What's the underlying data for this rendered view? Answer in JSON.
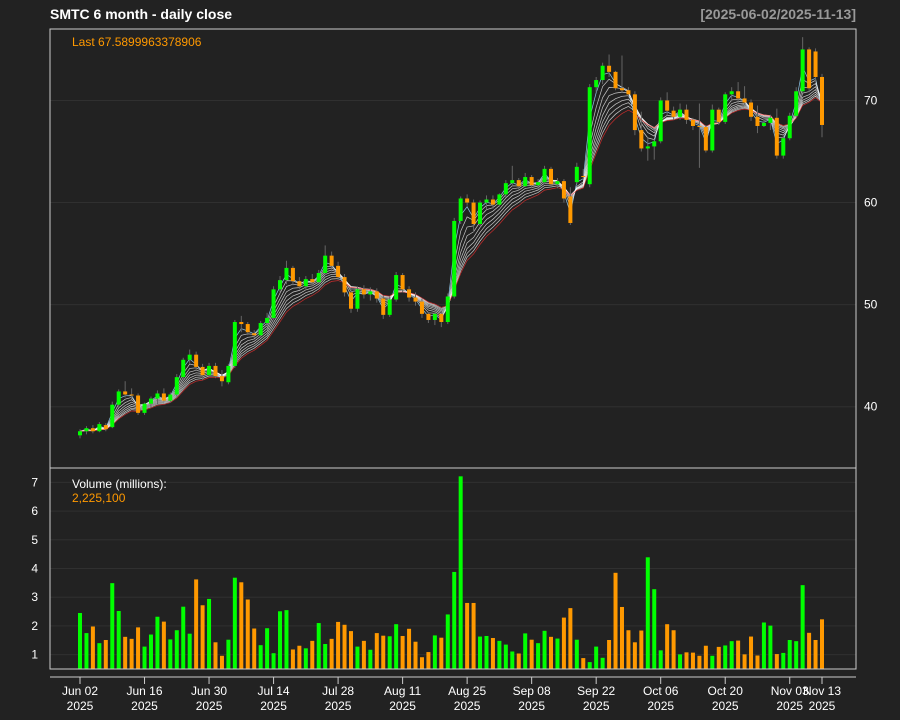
{
  "header": {
    "title": "SMTC  6 month - daily close",
    "range": "[2025-06-02/2025-11-13]"
  },
  "labels": {
    "last": "Last 67.5899963378906",
    "volume_title": "Volume (millions):",
    "volume_value": "2,225,100"
  },
  "colors": {
    "background": "#222222",
    "up": "#00ff00",
    "down": "#ff9900",
    "grid": "#303030",
    "axis": "#ffffff",
    "range_text": "#999999"
  },
  "chart_data": [
    {
      "type": "candlestick",
      "ticker": "SMTC",
      "ylim": [
        34,
        77
      ],
      "yticks": [
        40,
        50,
        60,
        70
      ],
      "xticks": [
        {
          "date": "2025-06-02",
          "label": "Jun 02",
          "year": "2025"
        },
        {
          "date": "2025-06-16",
          "label": "Jun 16",
          "year": "2025"
        },
        {
          "date": "2025-06-30",
          "label": "Jun 30",
          "year": "2025"
        },
        {
          "date": "2025-07-14",
          "label": "Jul 14",
          "year": "2025"
        },
        {
          "date": "2025-07-28",
          "label": "Jul 28",
          "year": "2025"
        },
        {
          "date": "2025-08-11",
          "label": "Aug 11",
          "year": "2025"
        },
        {
          "date": "2025-08-25",
          "label": "Aug 25",
          "year": "2025"
        },
        {
          "date": "2025-09-08",
          "label": "Sep 08",
          "year": "2025"
        },
        {
          "date": "2025-09-22",
          "label": "Sep 22",
          "year": "2025"
        },
        {
          "date": "2025-10-06",
          "label": "Oct 06",
          "year": "2025"
        },
        {
          "date": "2025-10-20",
          "label": "Oct 20",
          "year": "2025"
        },
        {
          "date": "2025-11-03",
          "label": "Nov 03",
          "year": "2025"
        },
        {
          "date": "2025-11-13",
          "label": "Nov 13",
          "year": "2025"
        }
      ],
      "ohlc_ohlc": [
        [
          37.2,
          37.8,
          36.9,
          37.6
        ],
        [
          37.6,
          38.1,
          37.3,
          37.9
        ],
        [
          37.9,
          38.2,
          37.4,
          37.6
        ],
        [
          37.6,
          38.5,
          37.5,
          38.3
        ],
        [
          38.2,
          38.4,
          37.6,
          37.8
        ],
        [
          38.0,
          40.5,
          37.9,
          40.2
        ],
        [
          40.2,
          41.7,
          40.0,
          41.5
        ],
        [
          41.5,
          42.5,
          40.9,
          41.2
        ],
        [
          41.2,
          41.8,
          40.7,
          41.1
        ],
        [
          41.1,
          41.3,
          39.2,
          39.4
        ],
        [
          39.4,
          40.4,
          39.2,
          40.3
        ],
        [
          40.3,
          41.0,
          39.9,
          40.8
        ],
        [
          40.8,
          41.6,
          40.3,
          41.3
        ],
        [
          41.3,
          41.8,
          40.5,
          40.6
        ],
        [
          40.6,
          41.4,
          40.4,
          41.2
        ],
        [
          41.2,
          43.2,
          41.0,
          42.9
        ],
        [
          42.9,
          44.8,
          42.7,
          44.6
        ],
        [
          44.6,
          45.6,
          44.2,
          45.1
        ],
        [
          45.1,
          45.4,
          43.5,
          43.9
        ],
        [
          43.9,
          44.2,
          42.6,
          43.1
        ],
        [
          43.1,
          44.3,
          42.9,
          44.0
        ],
        [
          44.0,
          44.3,
          42.8,
          43.0
        ],
        [
          43.0,
          43.6,
          42.0,
          42.5
        ],
        [
          42.4,
          44.2,
          42.2,
          44.0
        ],
        [
          44.0,
          48.5,
          43.8,
          48.3
        ],
        [
          48.3,
          48.9,
          47.3,
          48.1
        ],
        [
          48.1,
          48.3,
          47.0,
          47.3
        ],
        [
          47.2,
          47.5,
          46.7,
          47.0
        ],
        [
          47.0,
          48.4,
          46.8,
          48.2
        ],
        [
          48.2,
          49.2,
          47.8,
          48.7
        ],
        [
          48.7,
          51.8,
          48.5,
          51.5
        ],
        [
          51.5,
          52.8,
          51.2,
          52.4
        ],
        [
          52.4,
          54.3,
          52.0,
          53.6
        ],
        [
          53.6,
          53.8,
          51.9,
          52.3
        ],
        [
          52.3,
          52.7,
          51.5,
          51.8
        ],
        [
          51.8,
          52.8,
          51.4,
          52.5
        ],
        [
          52.5,
          53.0,
          51.8,
          52.2
        ],
        [
          52.2,
          53.4,
          52.0,
          53.1
        ],
        [
          53.1,
          55.8,
          52.9,
          54.8
        ],
        [
          54.8,
          55.2,
          53.6,
          53.8
        ],
        [
          53.8,
          54.2,
          52.4,
          52.7
        ],
        [
          52.7,
          53.0,
          50.8,
          51.2
        ],
        [
          51.2,
          51.6,
          49.2,
          49.6
        ],
        [
          49.6,
          51.8,
          49.3,
          51.5
        ],
        [
          51.5,
          51.9,
          50.6,
          51.0
        ],
        [
          51.0,
          51.7,
          50.4,
          51.3
        ],
        [
          51.3,
          51.6,
          50.2,
          50.6
        ],
        [
          50.6,
          50.9,
          48.6,
          49.0
        ],
        [
          49.0,
          50.8,
          48.8,
          50.5
        ],
        [
          50.5,
          53.2,
          50.3,
          52.9
        ],
        [
          52.9,
          53.1,
          51.2,
          51.5
        ],
        [
          51.5,
          51.8,
          50.3,
          50.7
        ],
        [
          50.7,
          51.2,
          49.9,
          50.3
        ],
        [
          50.3,
          50.6,
          48.7,
          49.1
        ],
        [
          49.1,
          49.3,
          48.2,
          48.5
        ],
        [
          48.5,
          49.5,
          48.0,
          49.1
        ],
        [
          49.1,
          49.4,
          47.8,
          48.3
        ],
        [
          48.3,
          51.1,
          48.1,
          50.8
        ],
        [
          50.8,
          58.5,
          50.6,
          58.2
        ],
        [
          58.2,
          60.6,
          57.9,
          60.4
        ],
        [
          60.4,
          60.8,
          59.7,
          60.0
        ],
        [
          60.0,
          60.3,
          57.1,
          57.9
        ],
        [
          57.9,
          60.2,
          57.7,
          60.0
        ],
        [
          60.0,
          60.7,
          59.3,
          60.3
        ],
        [
          60.3,
          60.7,
          59.4,
          59.8
        ],
        [
          59.8,
          60.9,
          59.6,
          60.8
        ],
        [
          60.8,
          62.2,
          60.5,
          61.9
        ],
        [
          61.9,
          63.6,
          61.6,
          62.2
        ],
        [
          62.2,
          62.4,
          61.2,
          61.6
        ],
        [
          61.6,
          62.9,
          61.5,
          62.5
        ],
        [
          62.5,
          62.7,
          61.4,
          61.7
        ],
        [
          61.7,
          62.3,
          61.3,
          62.0
        ],
        [
          62.0,
          63.6,
          61.8,
          63.3
        ],
        [
          63.3,
          63.5,
          61.5,
          61.8
        ],
        [
          61.8,
          62.4,
          61.4,
          62.1
        ],
        [
          62.1,
          62.3,
          60.0,
          60.4
        ],
        [
          60.6,
          61.5,
          57.8,
          58.0
        ],
        [
          62.0,
          63.9,
          61.8,
          63.5
        ],
        [
          62.6,
          63.3,
          62.3,
          62.5
        ],
        [
          61.8,
          71.6,
          61.5,
          71.3
        ],
        [
          71.3,
          72.3,
          70.8,
          72.0
        ],
        [
          72.0,
          73.7,
          71.6,
          73.4
        ],
        [
          73.4,
          74.5,
          72.3,
          72.8
        ],
        [
          72.8,
          72.9,
          71.0,
          71.2
        ],
        [
          71.2,
          74.4,
          70.8,
          71.0
        ],
        [
          71.0,
          71.3,
          70.3,
          70.6
        ],
        [
          70.6,
          70.9,
          66.6,
          67.1
        ],
        [
          67.1,
          68.9,
          65.0,
          65.3
        ],
        [
          65.3,
          66.4,
          64.1,
          65.5
        ],
        [
          65.5,
          66.2,
          64.2,
          66.0
        ],
        [
          66.0,
          70.3,
          65.8,
          70.0
        ],
        [
          70.0,
          70.8,
          68.5,
          69.0
        ],
        [
          69.0,
          69.4,
          68.1,
          68.4
        ],
        [
          68.4,
          69.7,
          68.1,
          69.1
        ],
        [
          69.1,
          69.6,
          67.7,
          68.1
        ],
        [
          68.1,
          68.3,
          67.1,
          67.5
        ],
        [
          67.5,
          69.7,
          63.4,
          67.4
        ],
        [
          67.4,
          67.6,
          64.9,
          65.1
        ],
        [
          65.1,
          69.6,
          64.9,
          69.1
        ],
        [
          69.1,
          69.3,
          67.6,
          67.9
        ],
        [
          67.9,
          70.8,
          67.7,
          70.6
        ],
        [
          70.6,
          71.3,
          69.9,
          70.9
        ],
        [
          70.9,
          71.8,
          69.6,
          70.2
        ],
        [
          70.2,
          71.4,
          69.5,
          69.8
        ],
        [
          69.8,
          70.1,
          68.0,
          68.4
        ],
        [
          68.4,
          69.5,
          66.8,
          67.5
        ],
        [
          67.5,
          68.1,
          67.4,
          67.8
        ],
        [
          67.8,
          68.6,
          67.1,
          68.3
        ],
        [
          68.3,
          69.2,
          64.3,
          64.6
        ],
        [
          64.6,
          66.5,
          64.3,
          66.3
        ],
        [
          66.3,
          68.8,
          66.1,
          68.5
        ],
        [
          68.5,
          71.3,
          68.3,
          70.9
        ],
        [
          70.9,
          76.2,
          70.7,
          75.0
        ],
        [
          75.0,
          75.2,
          70.8,
          71.2
        ],
        [
          74.8,
          75.1,
          71.8,
          72.3
        ],
        [
          72.3,
          72.6,
          66.4,
          67.6
        ]
      ]
    },
    {
      "type": "bar",
      "title": "Volume (millions):",
      "ylim": [
        0.5,
        7.5
      ],
      "yticks": [
        1,
        2,
        3,
        4,
        5,
        6,
        7
      ],
      "values": [
        2.45,
        1.75,
        1.98,
        1.4,
        1.51,
        3.49,
        2.52,
        1.62,
        1.55,
        1.95,
        1.28,
        1.7,
        2.32,
        2.15,
        1.53,
        1.85,
        2.67,
        1.73,
        3.62,
        2.72,
        2.94,
        1.43,
        0.96,
        1.52,
        3.68,
        3.52,
        2.92,
        1.91,
        1.33,
        1.92,
        1.05,
        2.51,
        2.55,
        1.18,
        1.31,
        1.22,
        1.48,
        2.1,
        1.37,
        1.55,
        2.14,
        2.04,
        1.82,
        1.28,
        1.48,
        1.17,
        1.75,
        1.66,
        1.64,
        2.06,
        1.65,
        1.9,
        1.45,
        0.91,
        1.09,
        1.67,
        1.59,
        2.4,
        3.88,
        7.21,
        2.8,
        2.8,
        1.63,
        1.65,
        1.58,
        1.48,
        1.35,
        1.11,
        1.04,
        1.74,
        1.52,
        1.4,
        1.83,
        1.62,
        1.56,
        2.29,
        2.62,
        1.52,
        0.88,
        0.74,
        1.28,
        0.89,
        1.51,
        3.85,
        2.66,
        1.85,
        1.43,
        1.84,
        4.39,
        3.28,
        1.15,
        2.06,
        1.85,
        1.01,
        1.08,
        1.07,
        0.96,
        1.31,
        0.96,
        1.27,
        1.32,
        1.47,
        1.49,
        1.01,
        1.63,
        0.97,
        2.12,
        2.01,
        1.02,
        1.06,
        1.51,
        1.47,
        3.42,
        1.76,
        1.51,
        2.23
      ]
    }
  ]
}
